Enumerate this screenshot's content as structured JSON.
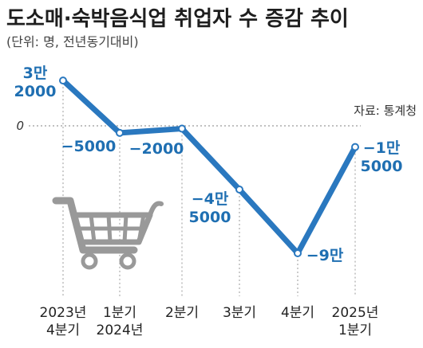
{
  "title": "도소매·숙박음식업 취업자 수 증감 추이",
  "subtitle": "(단위: 명, 전년동기대비)",
  "source": "자료: 통계청",
  "zero_label": "0",
  "colors": {
    "line": "#2a78bf",
    "label": "#1f6fb2",
    "cart": "#999999",
    "grid": "#9a9a9a"
  },
  "icon": "shopping-cart-icon",
  "chart_data": {
    "type": "line",
    "categories": [
      "2023년 4분기",
      "1분기 2024년",
      "2분기",
      "3분기",
      "4분기",
      "2025년 1분기"
    ],
    "tick_labels": [
      [
        "2023년",
        "4분기"
      ],
      [
        "1분기",
        "2024년"
      ],
      [
        "2분기"
      ],
      [
        "3분기"
      ],
      [
        "4분기"
      ],
      [
        "2025년",
        "1분기"
      ]
    ],
    "values": [
      32000,
      -5000,
      -2000,
      -45000,
      -90000,
      -15000
    ],
    "data_labels": [
      [
        "3만",
        "2000"
      ],
      [
        "−5000"
      ],
      [
        "−2000"
      ],
      [
        "−4만",
        "5000"
      ],
      [
        "−9만"
      ],
      [
        "−1만",
        "5000"
      ]
    ],
    "title": "도소매·숙박음식업 취업자 수 증감 추이",
    "xlabel": "",
    "ylabel": "",
    "ylim": [
      -95000,
      40000
    ],
    "grid": false,
    "zero_line": true
  }
}
